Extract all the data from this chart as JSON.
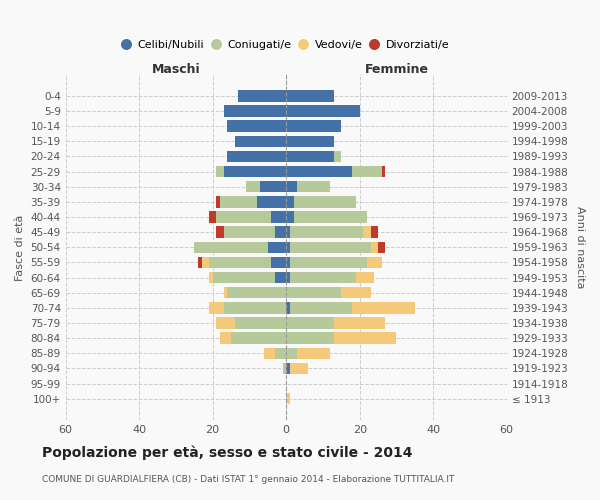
{
  "age_groups": [
    "100+",
    "95-99",
    "90-94",
    "85-89",
    "80-84",
    "75-79",
    "70-74",
    "65-69",
    "60-64",
    "55-59",
    "50-54",
    "45-49",
    "40-44",
    "35-39",
    "30-34",
    "25-29",
    "20-24",
    "15-19",
    "10-14",
    "5-9",
    "0-4"
  ],
  "birth_years": [
    "≤ 1913",
    "1914-1918",
    "1919-1923",
    "1924-1928",
    "1929-1933",
    "1934-1938",
    "1939-1943",
    "1944-1948",
    "1949-1953",
    "1954-1958",
    "1959-1963",
    "1964-1968",
    "1969-1973",
    "1974-1978",
    "1979-1983",
    "1984-1988",
    "1989-1993",
    "1994-1998",
    "1999-2003",
    "2004-2008",
    "2009-2013"
  ],
  "maschi": {
    "celibi": [
      0,
      0,
      0,
      0,
      0,
      0,
      0,
      0,
      3,
      4,
      5,
      3,
      4,
      8,
      7,
      17,
      16,
      14,
      16,
      17,
      13
    ],
    "coniugati": [
      0,
      0,
      1,
      3,
      15,
      14,
      17,
      16,
      17,
      17,
      20,
      14,
      15,
      10,
      4,
      2,
      0,
      0,
      0,
      0,
      0
    ],
    "vedovi": [
      0,
      0,
      0,
      3,
      3,
      5,
      4,
      1,
      1,
      2,
      0,
      0,
      0,
      0,
      0,
      0,
      0,
      0,
      0,
      0,
      0
    ],
    "divorziati": [
      0,
      0,
      0,
      0,
      0,
      0,
      0,
      0,
      0,
      1,
      0,
      2,
      2,
      1,
      0,
      0,
      0,
      0,
      0,
      0,
      0
    ]
  },
  "femmine": {
    "nubili": [
      0,
      0,
      1,
      0,
      0,
      0,
      1,
      0,
      1,
      1,
      1,
      1,
      2,
      2,
      3,
      18,
      13,
      13,
      15,
      20,
      13
    ],
    "coniugate": [
      0,
      0,
      0,
      3,
      13,
      13,
      17,
      15,
      18,
      21,
      22,
      20,
      20,
      17,
      9,
      8,
      2,
      0,
      0,
      0,
      0
    ],
    "vedove": [
      1,
      0,
      5,
      9,
      17,
      14,
      17,
      8,
      5,
      4,
      2,
      2,
      0,
      0,
      0,
      0,
      0,
      0,
      0,
      0,
      0
    ],
    "divorziate": [
      0,
      0,
      0,
      0,
      0,
      0,
      0,
      0,
      0,
      0,
      2,
      2,
      0,
      0,
      0,
      1,
      0,
      0,
      0,
      0,
      0
    ]
  },
  "colors": {
    "celibi": "#4472a8",
    "coniugati": "#b5c99a",
    "vedovi": "#f5c97a",
    "divorziati": "#c0392b"
  },
  "xlim": 60,
  "title": "Popolazione per età, sesso e stato civile - 2014",
  "subtitle": "COMUNE DI GUARDIALFIERA (CB) - Dati ISTAT 1° gennaio 2014 - Elaborazione TUTTITALIA.IT",
  "ylabel_left": "Fasce di età",
  "ylabel_right": "Anni di nascita",
  "xlabel_maschi": "Maschi",
  "xlabel_femmine": "Femmine"
}
